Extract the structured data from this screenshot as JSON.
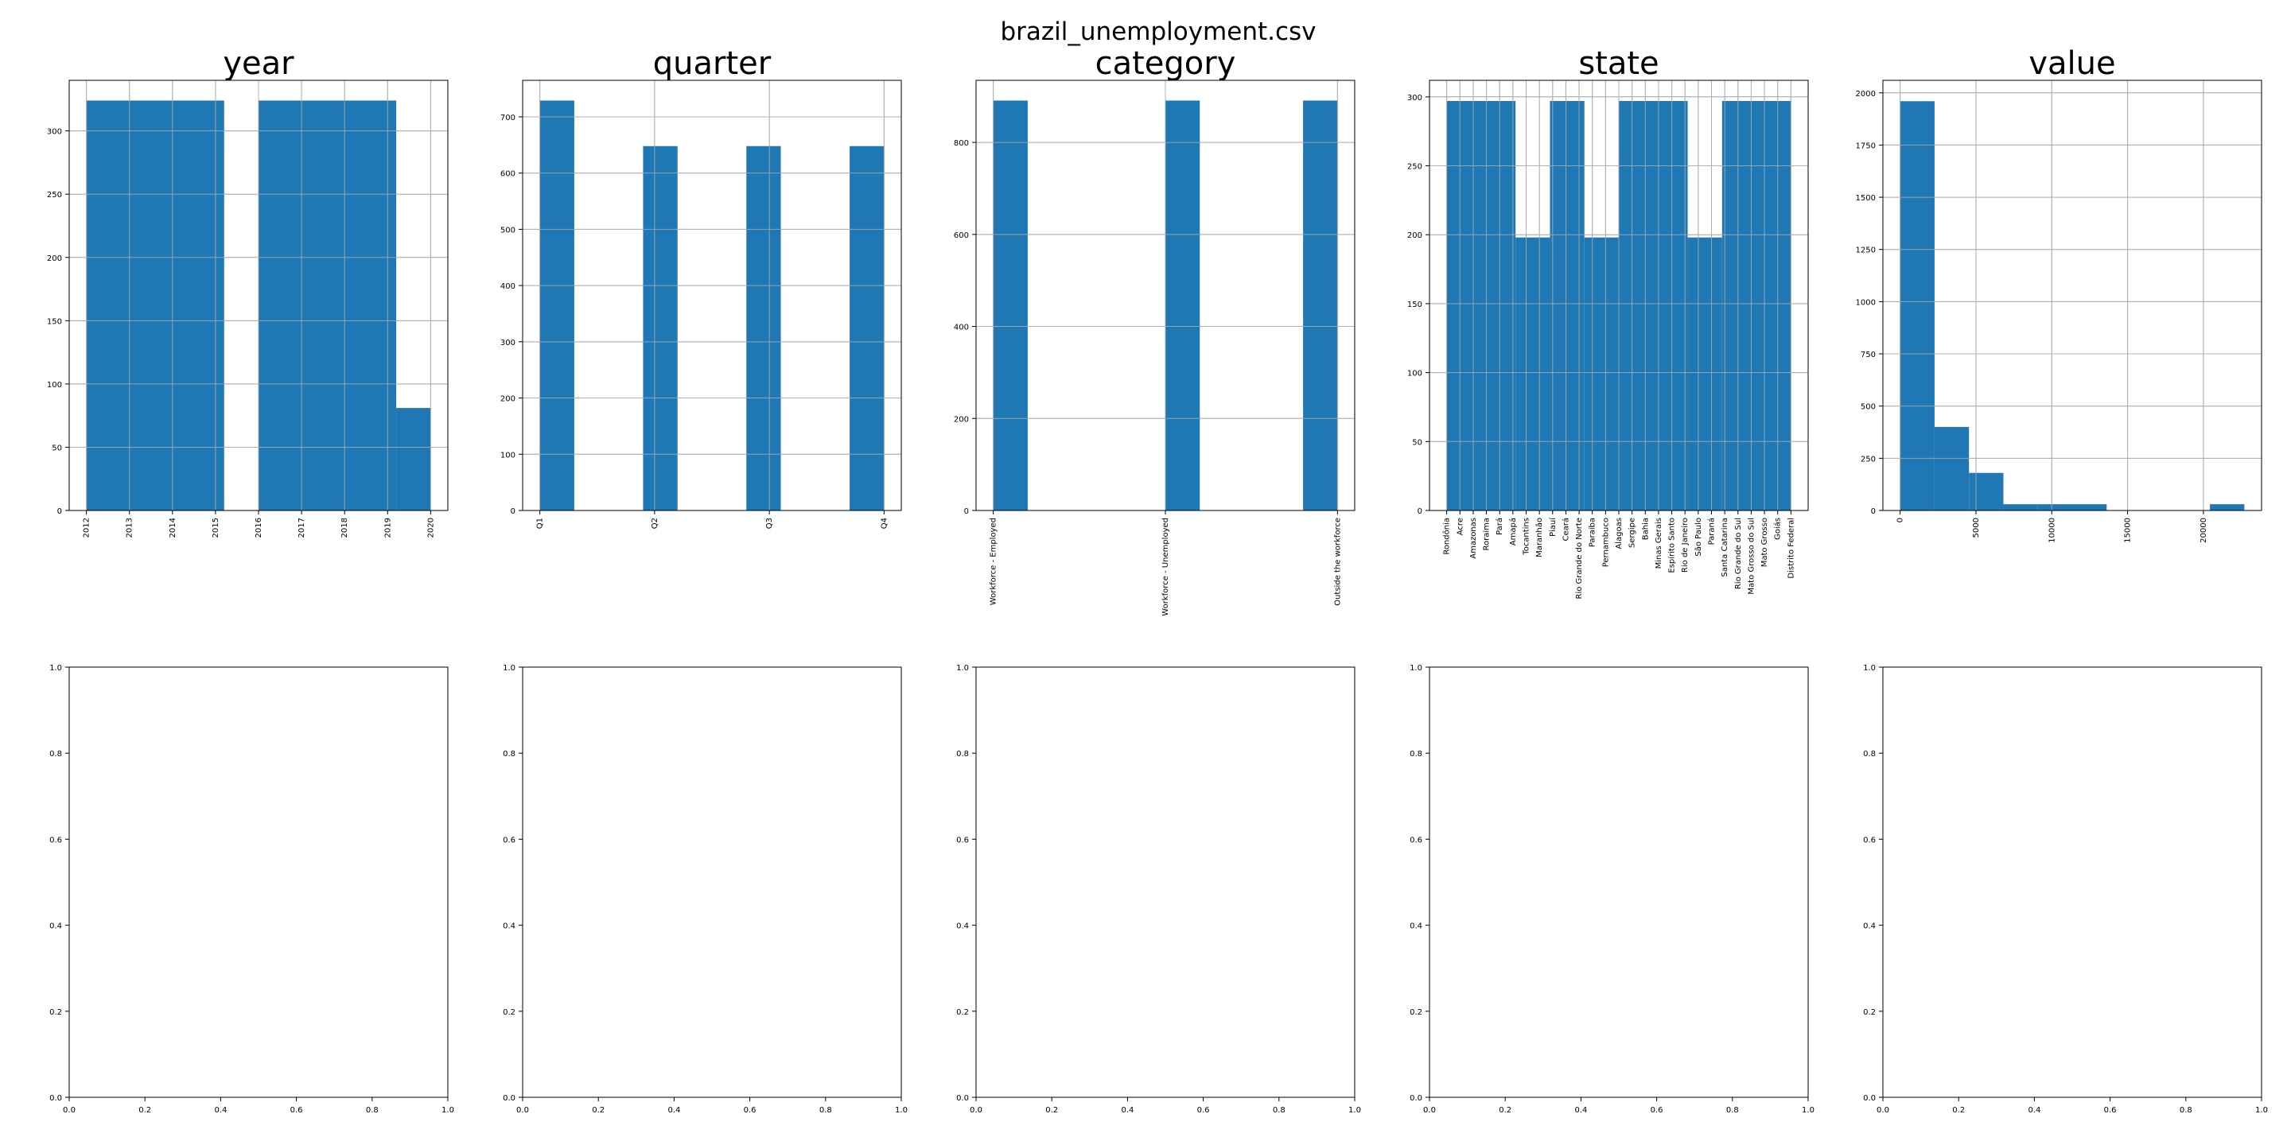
{
  "figure_title": "brazil_unemployment.csv",
  "colors": {
    "bar": "#1f77b4",
    "grid": "#b0b0b0",
    "axis": "#000000"
  },
  "chart_data": [
    {
      "type": "bar",
      "title": "year",
      "categories": [
        "2012",
        "2013",
        "2014",
        "2015",
        "2016",
        "2017",
        "2018",
        "2019",
        "2020"
      ],
      "bins": [
        {
          "x0": 2012.0,
          "x1": 2015.2,
          "value": 324
        },
        {
          "x0": 2016.0,
          "x1": 2019.2,
          "value": 324
        },
        {
          "x0": 2019.2,
          "x1": 2020.0,
          "value": 81
        }
      ],
      "xlim": [
        2011.6,
        2020.4
      ],
      "ylim": [
        0,
        340
      ],
      "yticks": [
        0,
        50,
        100,
        150,
        200,
        250,
        300
      ],
      "xtick_values": [
        2012,
        2013,
        2014,
        2015,
        2016,
        2017,
        2018,
        2019,
        2020
      ],
      "grid": true
    },
    {
      "type": "bar",
      "title": "quarter",
      "categories": [
        "Q1",
        "Q2",
        "Q3",
        "Q4"
      ],
      "bins": [
        {
          "x0": 0.0,
          "x1": 0.3,
          "value": 729
        },
        {
          "x0": 0.9,
          "x1": 1.2,
          "value": 648
        },
        {
          "x0": 1.8,
          "x1": 2.1,
          "value": 648
        },
        {
          "x0": 2.7,
          "x1": 3.0,
          "value": 648
        }
      ],
      "xlim": [
        -0.15,
        3.15
      ],
      "ylim": [
        0,
        765
      ],
      "yticks": [
        0,
        100,
        200,
        300,
        400,
        500,
        600,
        700
      ],
      "xtick_values": [
        0,
        1,
        2,
        3
      ],
      "grid": true
    },
    {
      "type": "bar",
      "title": "category",
      "categories": [
        "Workforce - Employed",
        "Workforce - Unemployed",
        "Outside the workforce"
      ],
      "bins": [
        {
          "x0": 0.0,
          "x1": 0.2,
          "value": 891
        },
        {
          "x0": 1.0,
          "x1": 1.2,
          "value": 891
        },
        {
          "x0": 1.8,
          "x1": 2.0,
          "value": 891
        }
      ],
      "xlim": [
        -0.1,
        2.1
      ],
      "ylim": [
        0,
        935
      ],
      "yticks": [
        0,
        200,
        400,
        600,
        800
      ],
      "xtick_values": [
        0,
        1,
        2
      ],
      "grid": true
    },
    {
      "type": "bar",
      "title": "state",
      "categories": [
        "Rondônia",
        "Acre",
        "Amazonas",
        "Roraima",
        "Pará",
        "Amapá",
        "Tocantins",
        "Maranhão",
        "Piauí",
        "Ceará",
        "Rio Grande do Norte",
        "Paraíba",
        "Pernambuco",
        "Alagoas",
        "Sergipe",
        "Bahia",
        "Minas Gerais",
        "Espírito Santo",
        "Rio de Janeiro",
        "São Paulo",
        "Paraná",
        "Santa Catarina",
        "Rio Grande do Sul",
        "Mato Grosso do Sul",
        "Mato Grosso",
        "Goiás",
        "Distrito Federal"
      ],
      "bins": [
        {
          "x0": 0.0,
          "x1": 5.2,
          "value": 297
        },
        {
          "x0": 5.2,
          "x1": 7.8,
          "value": 198
        },
        {
          "x0": 7.8,
          "x1": 10.4,
          "value": 297
        },
        {
          "x0": 10.4,
          "x1": 13.0,
          "value": 198
        },
        {
          "x0": 13.0,
          "x1": 18.2,
          "value": 297
        },
        {
          "x0": 18.2,
          "x1": 20.8,
          "value": 198
        },
        {
          "x0": 20.8,
          "x1": 26.0,
          "value": 297
        }
      ],
      "xlim": [
        -1.3,
        27.3
      ],
      "ylim": [
        0,
        312
      ],
      "yticks": [
        0,
        50,
        100,
        150,
        200,
        250,
        300
      ],
      "xtick_values": [
        0,
        1,
        2,
        3,
        4,
        5,
        6,
        7,
        8,
        9,
        10,
        11,
        12,
        13,
        14,
        15,
        16,
        17,
        18,
        19,
        20,
        21,
        22,
        23,
        24,
        25,
        26
      ],
      "grid": true
    },
    {
      "type": "bar",
      "title": "value",
      "categories": [
        "0",
        "5000",
        "10000",
        "15000",
        "20000"
      ],
      "bins": [
        {
          "x0": 0,
          "x1": 2270,
          "value": 1960
        },
        {
          "x0": 2270,
          "x1": 4540,
          "value": 400
        },
        {
          "x0": 4540,
          "x1": 6810,
          "value": 180
        },
        {
          "x0": 6810,
          "x1": 9080,
          "value": 30
        },
        {
          "x0": 9080,
          "x1": 11350,
          "value": 30
        },
        {
          "x0": 11350,
          "x1": 13620,
          "value": 30
        },
        {
          "x0": 20430,
          "x1": 22700,
          "value": 30
        }
      ],
      "xlim": [
        -1135,
        23835
      ],
      "ylim": [
        0,
        2060
      ],
      "yticks": [
        0,
        250,
        500,
        750,
        1000,
        1250,
        1500,
        1750,
        2000
      ],
      "xtick_values": [
        0,
        5000,
        10000,
        15000,
        20000
      ],
      "grid": true
    }
  ],
  "empty_axes": {
    "tick_labels": [
      "0.0",
      "0.2",
      "0.4",
      "0.6",
      "0.8",
      "1.0"
    ]
  }
}
